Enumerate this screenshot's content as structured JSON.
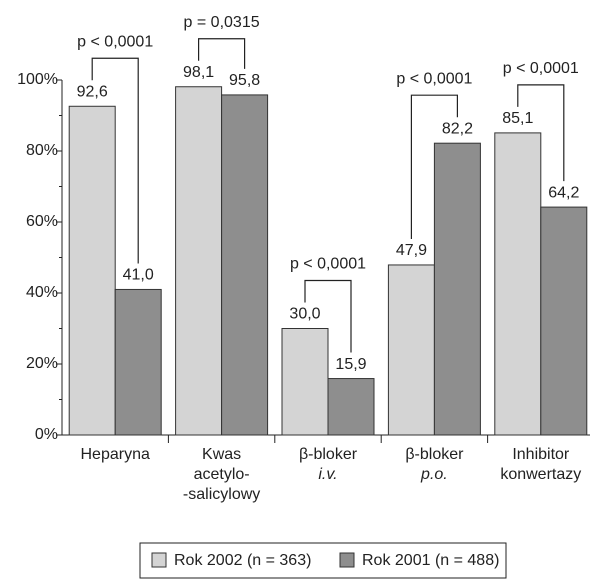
{
  "chart_data": {
    "type": "bar",
    "categories": [
      [
        "Heparyna"
      ],
      [
        "Kwas",
        "acetylo-",
        "-salicylowy"
      ],
      [
        "β-bloker",
        "i.v."
      ],
      [
        "β-bloker",
        "p.o."
      ],
      [
        "Inhibitor",
        "konwertazy"
      ]
    ],
    "series": [
      {
        "name": "Rok 2002 (n = 363)",
        "color": "#d4d4d4",
        "values": [
          92.6,
          98.1,
          30.0,
          47.9,
          85.1
        ],
        "value_labels": [
          "92,6",
          "98,1",
          "30,0",
          "47,9",
          "85,1"
        ]
      },
      {
        "name": "Rok 2001 (n = 488)",
        "color": "#8e8e8e",
        "values": [
          41.0,
          95.8,
          15.9,
          82.2,
          64.2
        ],
        "value_labels": [
          "41,0",
          "95,8",
          "15,9",
          "82,2",
          "64,2"
        ]
      }
    ],
    "significance": [
      "p < 0,0001",
      "p = 0,0315",
      "p < 0,0001",
      "p < 0,0001",
      "p < 0,0001"
    ],
    "ylim": [
      0,
      100
    ],
    "yticks": [
      {
        "value": 0,
        "label": "0%"
      },
      {
        "value": 20,
        "label": "20%"
      },
      {
        "value": 40,
        "label": "40%"
      },
      {
        "value": 60,
        "label": "60%"
      },
      {
        "value": 80,
        "label": "80%"
      },
      {
        "value": 100,
        "label": "100%"
      }
    ],
    "legend": "bottom"
  }
}
